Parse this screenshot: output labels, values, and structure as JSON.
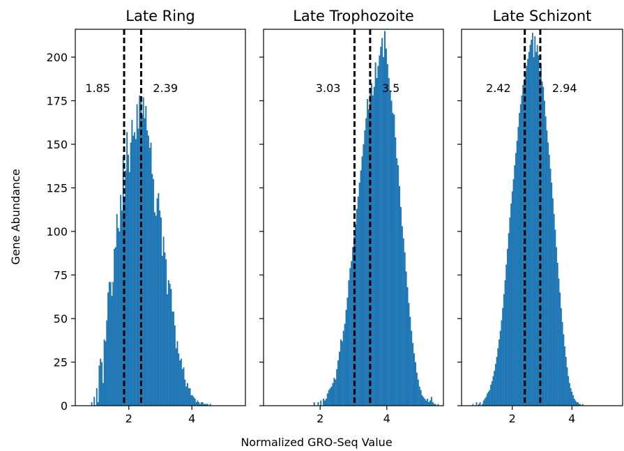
{
  "chart_data": {
    "type": "bar",
    "subtype": "histogram",
    "xlabel": "Normalized GRO-Seq Value",
    "ylabel": "Gene Abundance",
    "ylim": [
      0,
      216
    ],
    "yticks": [
      0,
      25,
      50,
      75,
      100,
      125,
      150,
      175,
      200
    ],
    "xticks": [
      2,
      4
    ],
    "bar_color": "#1f77b4",
    "line_color": "#000000",
    "shared_y": true,
    "panels": [
      {
        "title": "Late Ring",
        "xlim": [
          0.3,
          5.7
        ],
        "bin_start": 0.4,
        "bin_width": 0.04,
        "counts": [
          0,
          0,
          0,
          0,
          0,
          0,
          0,
          0,
          0,
          0,
          2,
          0,
          5,
          0,
          10,
          2,
          23,
          27,
          25,
          13,
          38,
          37,
          49,
          65,
          71,
          71,
          63,
          71,
          90,
          91,
          110,
          102,
          100,
          121,
          112,
          143,
          117,
          135,
          157,
          144,
          134,
          151,
          164,
          155,
          157,
          153,
          173,
          159,
          178,
          175,
          167,
          177,
          165,
          172,
          158,
          155,
          148,
          151,
          133,
          130,
          111,
          109,
          119,
          122,
          112,
          108,
          86,
          97,
          88,
          84,
          64,
          72,
          70,
          67,
          54,
          54,
          46,
          33,
          37,
          30,
          26,
          27,
          21,
          22,
          15,
          11,
          13,
          10,
          10,
          6,
          6,
          5,
          4,
          2,
          3,
          2,
          1,
          2,
          2,
          1,
          1,
          1,
          1,
          0,
          1,
          0,
          0,
          0,
          0,
          0,
          0,
          0,
          0,
          0,
          0,
          0,
          0,
          0,
          0,
          0,
          0,
          0,
          0,
          0,
          0,
          0,
          0,
          0,
          0,
          0,
          0,
          0,
          0,
          0,
          0
        ],
        "lines": [
          {
            "value": 1.85,
            "label": "1.85"
          },
          {
            "value": 2.39,
            "label": "2.39"
          }
        ]
      },
      {
        "title": "Late Trophozoite",
        "xlim": [
          0.3,
          5.7
        ],
        "bin_start": 1.4,
        "bin_width": 0.04,
        "counts": [
          0,
          0,
          0,
          0,
          0,
          0,
          0,
          0,
          0,
          0,
          2,
          0,
          0,
          2,
          0,
          3,
          0,
          4,
          3,
          4,
          7,
          9,
          10,
          11,
          13,
          16,
          15,
          21,
          26,
          31,
          38,
          37,
          43,
          47,
          55,
          62,
          72,
          79,
          83,
          91,
          97,
          104,
          113,
          120,
          128,
          135,
          143,
          150,
          158,
          165,
          176,
          170,
          179,
          185,
          178,
          183,
          197,
          188,
          195,
          201,
          206,
          211,
          200,
          215,
          205,
          196,
          188,
          181,
          175,
          168,
          167,
          154,
          142,
          138,
          126,
          114,
          103,
          96,
          88,
          77,
          68,
          59,
          51,
          43,
          36,
          30,
          25,
          19,
          15,
          11,
          9,
          6,
          5,
          4,
          3,
          4,
          2,
          3,
          5,
          2,
          1,
          1,
          0,
          1,
          0,
          0,
          0,
          0,
          0,
          0,
          0
        ],
        "lines": [
          {
            "value": 3.03,
            "label": "3.03"
          },
          {
            "value": 3.5,
            "label": "3.5"
          }
        ]
      },
      {
        "title": "Late Schizont",
        "xlim": [
          0.3,
          5.7
        ],
        "bin_start": 0.5,
        "bin_width": 0.04,
        "counts": [
          0,
          0,
          0,
          0,
          1,
          0,
          0,
          2,
          0,
          1,
          2,
          0,
          1,
          3,
          4,
          5,
          7,
          8,
          9,
          12,
          14,
          17,
          20,
          24,
          28,
          33,
          38,
          43,
          49,
          56,
          64,
          72,
          81,
          90,
          99,
          108,
          116,
          123,
          130,
          138,
          145,
          152,
          160,
          168,
          173,
          178,
          184,
          187,
          191,
          195,
          199,
          203,
          207,
          210,
          214,
          200,
          212,
          203,
          207,
          201,
          190,
          196,
          186,
          183,
          175,
          166,
          158,
          151,
          144,
          136,
          128,
          119,
          110,
          101,
          91,
          82,
          73,
          65,
          56,
          48,
          41,
          34,
          28,
          22,
          17,
          13,
          10,
          8,
          6,
          4,
          3,
          2,
          2,
          1,
          1,
          0,
          1,
          0,
          0,
          0
        ],
        "lines": [
          {
            "value": 2.42,
            "label": "2.42"
          },
          {
            "value": 2.94,
            "label": "2.94"
          }
        ]
      }
    ]
  }
}
